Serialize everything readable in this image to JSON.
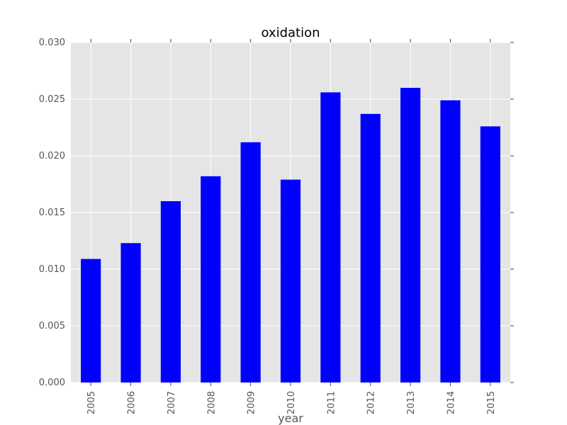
{
  "chart_data": {
    "type": "bar",
    "title": "oxidation",
    "xlabel": "year",
    "ylabel": "",
    "categories": [
      "2005",
      "2006",
      "2007",
      "2008",
      "2009",
      "2010",
      "2011",
      "2012",
      "2013",
      "2014",
      "2015"
    ],
    "values": [
      0.0109,
      0.0123,
      0.016,
      0.0182,
      0.0212,
      0.0179,
      0.0256,
      0.0237,
      0.026,
      0.0249,
      0.0226
    ],
    "ylim": [
      0,
      0.03
    ],
    "yticks": [
      "0.000",
      "0.005",
      "0.010",
      "0.015",
      "0.020",
      "0.025",
      "0.030"
    ],
    "grid": true,
    "legend": "none",
    "colors": {
      "bar": "#0000ff",
      "plot_background": "#e5e5e5",
      "grid": "#ffffff",
      "tick_text": "#555555",
      "title_text": "#000000"
    }
  }
}
